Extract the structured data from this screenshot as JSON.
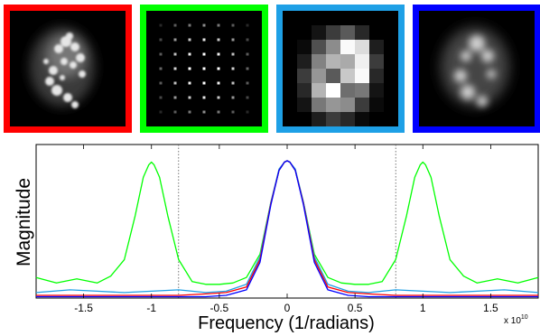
{
  "panels": [
    {
      "name": "original-image-panel",
      "border_color": "#ff0000"
    },
    {
      "name": "sampling-grid-panel",
      "border_color": "#00ff00"
    },
    {
      "name": "pixelated-image-panel",
      "border_color": "#1ea0e6"
    },
    {
      "name": "blurred-image-panel",
      "border_color": "#0000ff"
    }
  ],
  "chart_data": {
    "type": "line",
    "xlabel": "Frequency (1/radians)",
    "ylabel": "Magnitude",
    "x_multiplier": "x 10",
    "x_multiplier_exp": "10",
    "xlim": [
      -1.85,
      1.85
    ],
    "ylim": [
      0,
      1.0
    ],
    "x_ticks": [
      -1.5,
      -1,
      -0.5,
      0,
      0.5,
      1,
      1.5
    ],
    "x_tick_labels": [
      "-1.5",
      "-1",
      "-0.5",
      "0",
      "0.5",
      "1",
      "1.5"
    ],
    "vlines": [
      -0.8,
      0.8
    ],
    "grid": false,
    "series": [
      {
        "color": "#00ff00",
        "x": [
          -1.85,
          -1.7,
          -1.55,
          -1.4,
          -1.3,
          -1.2,
          -1.12,
          -1.06,
          -1.02,
          -1.0,
          -0.98,
          -0.94,
          -0.88,
          -0.8,
          -0.7,
          -0.6,
          -0.5,
          -0.4,
          -0.3,
          -0.2,
          -0.12,
          -0.06,
          -0.02,
          0,
          0.02,
          0.06,
          0.12,
          0.2,
          0.3,
          0.4,
          0.5,
          0.6,
          0.7,
          0.8,
          0.88,
          0.94,
          0.98,
          1.0,
          1.02,
          1.06,
          1.12,
          1.2,
          1.3,
          1.4,
          1.55,
          1.7,
          1.85
        ],
        "y": [
          0.15,
          0.11,
          0.14,
          0.11,
          0.16,
          0.28,
          0.6,
          0.88,
          0.97,
          0.99,
          0.97,
          0.88,
          0.6,
          0.28,
          0.12,
          0.1,
          0.1,
          0.11,
          0.15,
          0.32,
          0.7,
          0.93,
          0.99,
          1.0,
          0.99,
          0.93,
          0.7,
          0.32,
          0.15,
          0.11,
          0.1,
          0.1,
          0.12,
          0.28,
          0.6,
          0.88,
          0.97,
          0.99,
          0.97,
          0.88,
          0.6,
          0.28,
          0.16,
          0.11,
          0.14,
          0.11,
          0.15
        ]
      },
      {
        "color": "#1ea0e6",
        "x": [
          -1.85,
          -1.6,
          -1.4,
          -1.2,
          -1.0,
          -0.8,
          -0.6,
          -0.45,
          -0.3,
          -0.2,
          -0.12,
          -0.06,
          -0.02,
          0,
          0.02,
          0.06,
          0.12,
          0.2,
          0.3,
          0.45,
          0.6,
          0.8,
          1.0,
          1.2,
          1.4,
          1.6,
          1.85
        ],
        "y": [
          0.04,
          0.06,
          0.05,
          0.04,
          0.05,
          0.06,
          0.04,
          0.05,
          0.1,
          0.3,
          0.7,
          0.94,
          0.99,
          1.0,
          0.99,
          0.94,
          0.7,
          0.3,
          0.1,
          0.05,
          0.04,
          0.06,
          0.05,
          0.04,
          0.05,
          0.06,
          0.04
        ]
      },
      {
        "color": "#ff0000",
        "x": [
          -1.85,
          -1.5,
          -1.2,
          -1.0,
          -0.8,
          -0.6,
          -0.45,
          -0.3,
          -0.2,
          -0.12,
          -0.06,
          -0.02,
          0,
          0.02,
          0.06,
          0.12,
          0.2,
          0.3,
          0.45,
          0.6,
          0.8,
          1.0,
          1.2,
          1.5,
          1.85
        ],
        "y": [
          0.02,
          0.02,
          0.02,
          0.02,
          0.02,
          0.03,
          0.04,
          0.08,
          0.28,
          0.69,
          0.93,
          0.99,
          1.0,
          0.99,
          0.93,
          0.69,
          0.28,
          0.08,
          0.04,
          0.03,
          0.02,
          0.02,
          0.02,
          0.02,
          0.02
        ]
      },
      {
        "color": "#0000ff",
        "x": [
          -1.85,
          -1.5,
          -1.2,
          -1.0,
          -0.8,
          -0.6,
          -0.45,
          -0.3,
          -0.2,
          -0.12,
          -0.06,
          -0.02,
          0,
          0.02,
          0.06,
          0.12,
          0.2,
          0.3,
          0.45,
          0.6,
          0.8,
          1.0,
          1.2,
          1.5,
          1.85
        ],
        "y": [
          0.01,
          0.01,
          0.01,
          0.01,
          0.01,
          0.01,
          0.02,
          0.06,
          0.26,
          0.68,
          0.93,
          0.99,
          1.0,
          0.99,
          0.93,
          0.68,
          0.26,
          0.06,
          0.02,
          0.01,
          0.01,
          0.01,
          0.01,
          0.01,
          0.01
        ]
      }
    ]
  }
}
